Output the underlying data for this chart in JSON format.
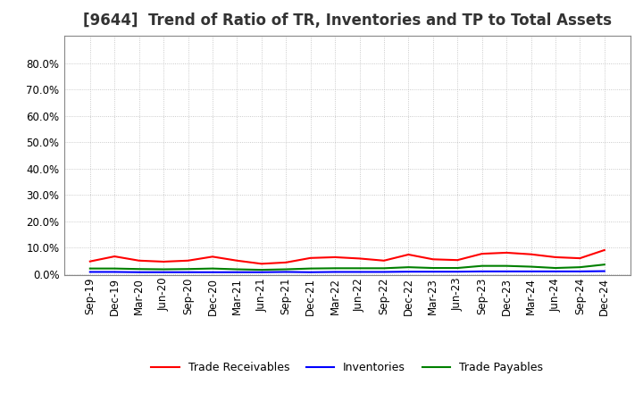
{
  "title": "[9644]  Trend of Ratio of TR, Inventories and TP to Total Assets",
  "x_labels": [
    "Sep-19",
    "Dec-19",
    "Mar-20",
    "Jun-20",
    "Sep-20",
    "Dec-20",
    "Mar-21",
    "Jun-21",
    "Sep-21",
    "Dec-21",
    "Mar-22",
    "Jun-22",
    "Sep-22",
    "Dec-22",
    "Mar-23",
    "Jun-23",
    "Sep-23",
    "Dec-23",
    "Mar-24",
    "Jun-24",
    "Sep-24",
    "Dec-24"
  ],
  "trade_receivables": [
    0.047,
    0.066,
    0.05,
    0.046,
    0.05,
    0.065,
    0.05,
    0.038,
    0.043,
    0.06,
    0.063,
    0.058,
    0.05,
    0.073,
    0.055,
    0.052,
    0.076,
    0.08,
    0.074,
    0.063,
    0.059,
    0.09
  ],
  "inventories": [
    0.007,
    0.007,
    0.006,
    0.006,
    0.006,
    0.006,
    0.006,
    0.006,
    0.007,
    0.006,
    0.007,
    0.007,
    0.007,
    0.008,
    0.008,
    0.008,
    0.009,
    0.009,
    0.009,
    0.009,
    0.009,
    0.01
  ],
  "trade_payables": [
    0.02,
    0.02,
    0.018,
    0.017,
    0.018,
    0.02,
    0.017,
    0.015,
    0.017,
    0.02,
    0.021,
    0.021,
    0.021,
    0.025,
    0.022,
    0.022,
    0.03,
    0.03,
    0.027,
    0.022,
    0.025,
    0.035
  ],
  "color_tr": "#FF0000",
  "color_inv": "#0000FF",
  "color_tp": "#008000",
  "ylim_min": -0.005,
  "ylim_max": 0.905,
  "yticks": [
    0.0,
    0.1,
    0.2,
    0.3,
    0.4,
    0.5,
    0.6,
    0.7,
    0.8
  ],
  "legend_labels": [
    "Trade Receivables",
    "Inventories",
    "Trade Payables"
  ],
  "bg_color": "#FFFFFF",
  "grid_color": "#AAAAAA",
  "title_fontsize": 12,
  "tick_fontsize": 8.5,
  "linewidth": 1.5
}
